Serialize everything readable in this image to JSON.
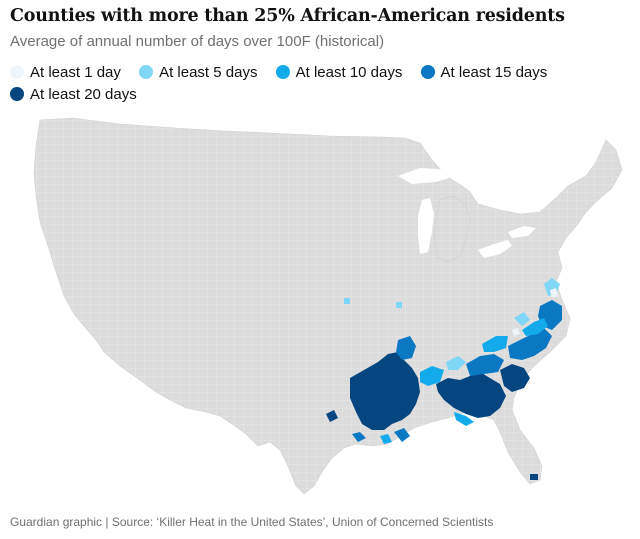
{
  "title": "Counties with more than 25% African-American residents",
  "subtitle": "Average of annual number of days over 100F (historical)",
  "legend": [
    {
      "label": "At least 1 day",
      "color": "#eef5fb"
    },
    {
      "label": "At least 5 days",
      "color": "#7fd6f7"
    },
    {
      "label": "At least 10 days",
      "color": "#12aaeb"
    },
    {
      "label": "At least 15 days",
      "color": "#0b78c4"
    },
    {
      "label": "At least 20 days",
      "color": "#064680"
    }
  ],
  "colors": {
    "base_county": "#dcdcdc",
    "county_border": "#f2f2f2",
    "text_main": "#121212",
    "text_muted": "#707070"
  },
  "source": "Guardian graphic | Source: ‘Killer Heat in the United States’, Union of Concerned Scientists"
}
